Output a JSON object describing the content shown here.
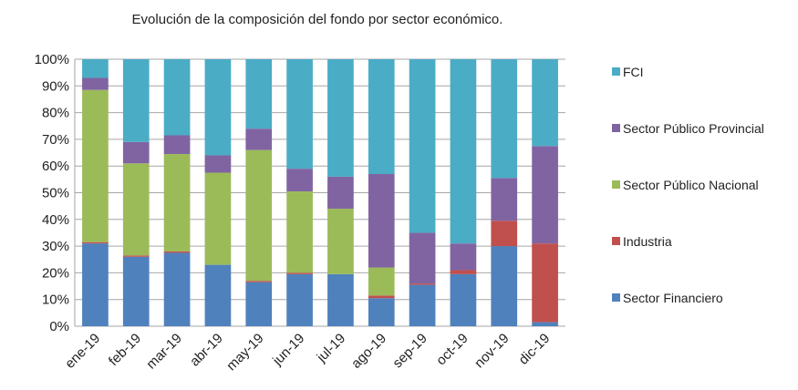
{
  "chart_data": {
    "type": "bar",
    "stacked": true,
    "percent": true,
    "title": "Evolución de la composición del fondo por sector económico.",
    "categories": [
      "ene-19",
      "feb-19",
      "mar-19",
      "abr-19",
      "may-19",
      "jun-19",
      "jul-19",
      "ago-19",
      "sep-19",
      "oct-19",
      "nov-19",
      "dic-19"
    ],
    "y_ticks": [
      "0%",
      "10%",
      "20%",
      "30%",
      "40%",
      "50%",
      "60%",
      "70%",
      "80%",
      "90%",
      "100%"
    ],
    "ylim": [
      0,
      100
    ],
    "grid": true,
    "legend_position": "right",
    "series": [
      {
        "name": "Sector Financiero",
        "color": "#4f81bd",
        "values": [
          31,
          26,
          27.5,
          23,
          16.5,
          19.5,
          19.5,
          10.5,
          15.5,
          19.5,
          30,
          1.5
        ]
      },
      {
        "name": "Industria",
        "color": "#c0504d",
        "values": [
          0.5,
          0.5,
          0.5,
          0,
          0.5,
          0.5,
          0,
          1,
          0.5,
          1.5,
          9.5,
          29.5
        ]
      },
      {
        "name": "Sector Público Nacional",
        "color": "#9bbb59",
        "values": [
          57,
          34.5,
          36.5,
          34.5,
          49,
          30.5,
          24.5,
          10.5,
          0,
          0,
          0,
          0
        ]
      },
      {
        "name": "Sector Público Provincial",
        "color": "#8064a2",
        "values": [
          4.5,
          8,
          7,
          6.5,
          8,
          8.5,
          12,
          35,
          19,
          10,
          16,
          36.5
        ]
      },
      {
        "name": "FCI",
        "color": "#4bacc6",
        "values": [
          7,
          31,
          28.5,
          36,
          26,
          41,
          44,
          43,
          65,
          69,
          44.5,
          32.5
        ]
      }
    ]
  }
}
